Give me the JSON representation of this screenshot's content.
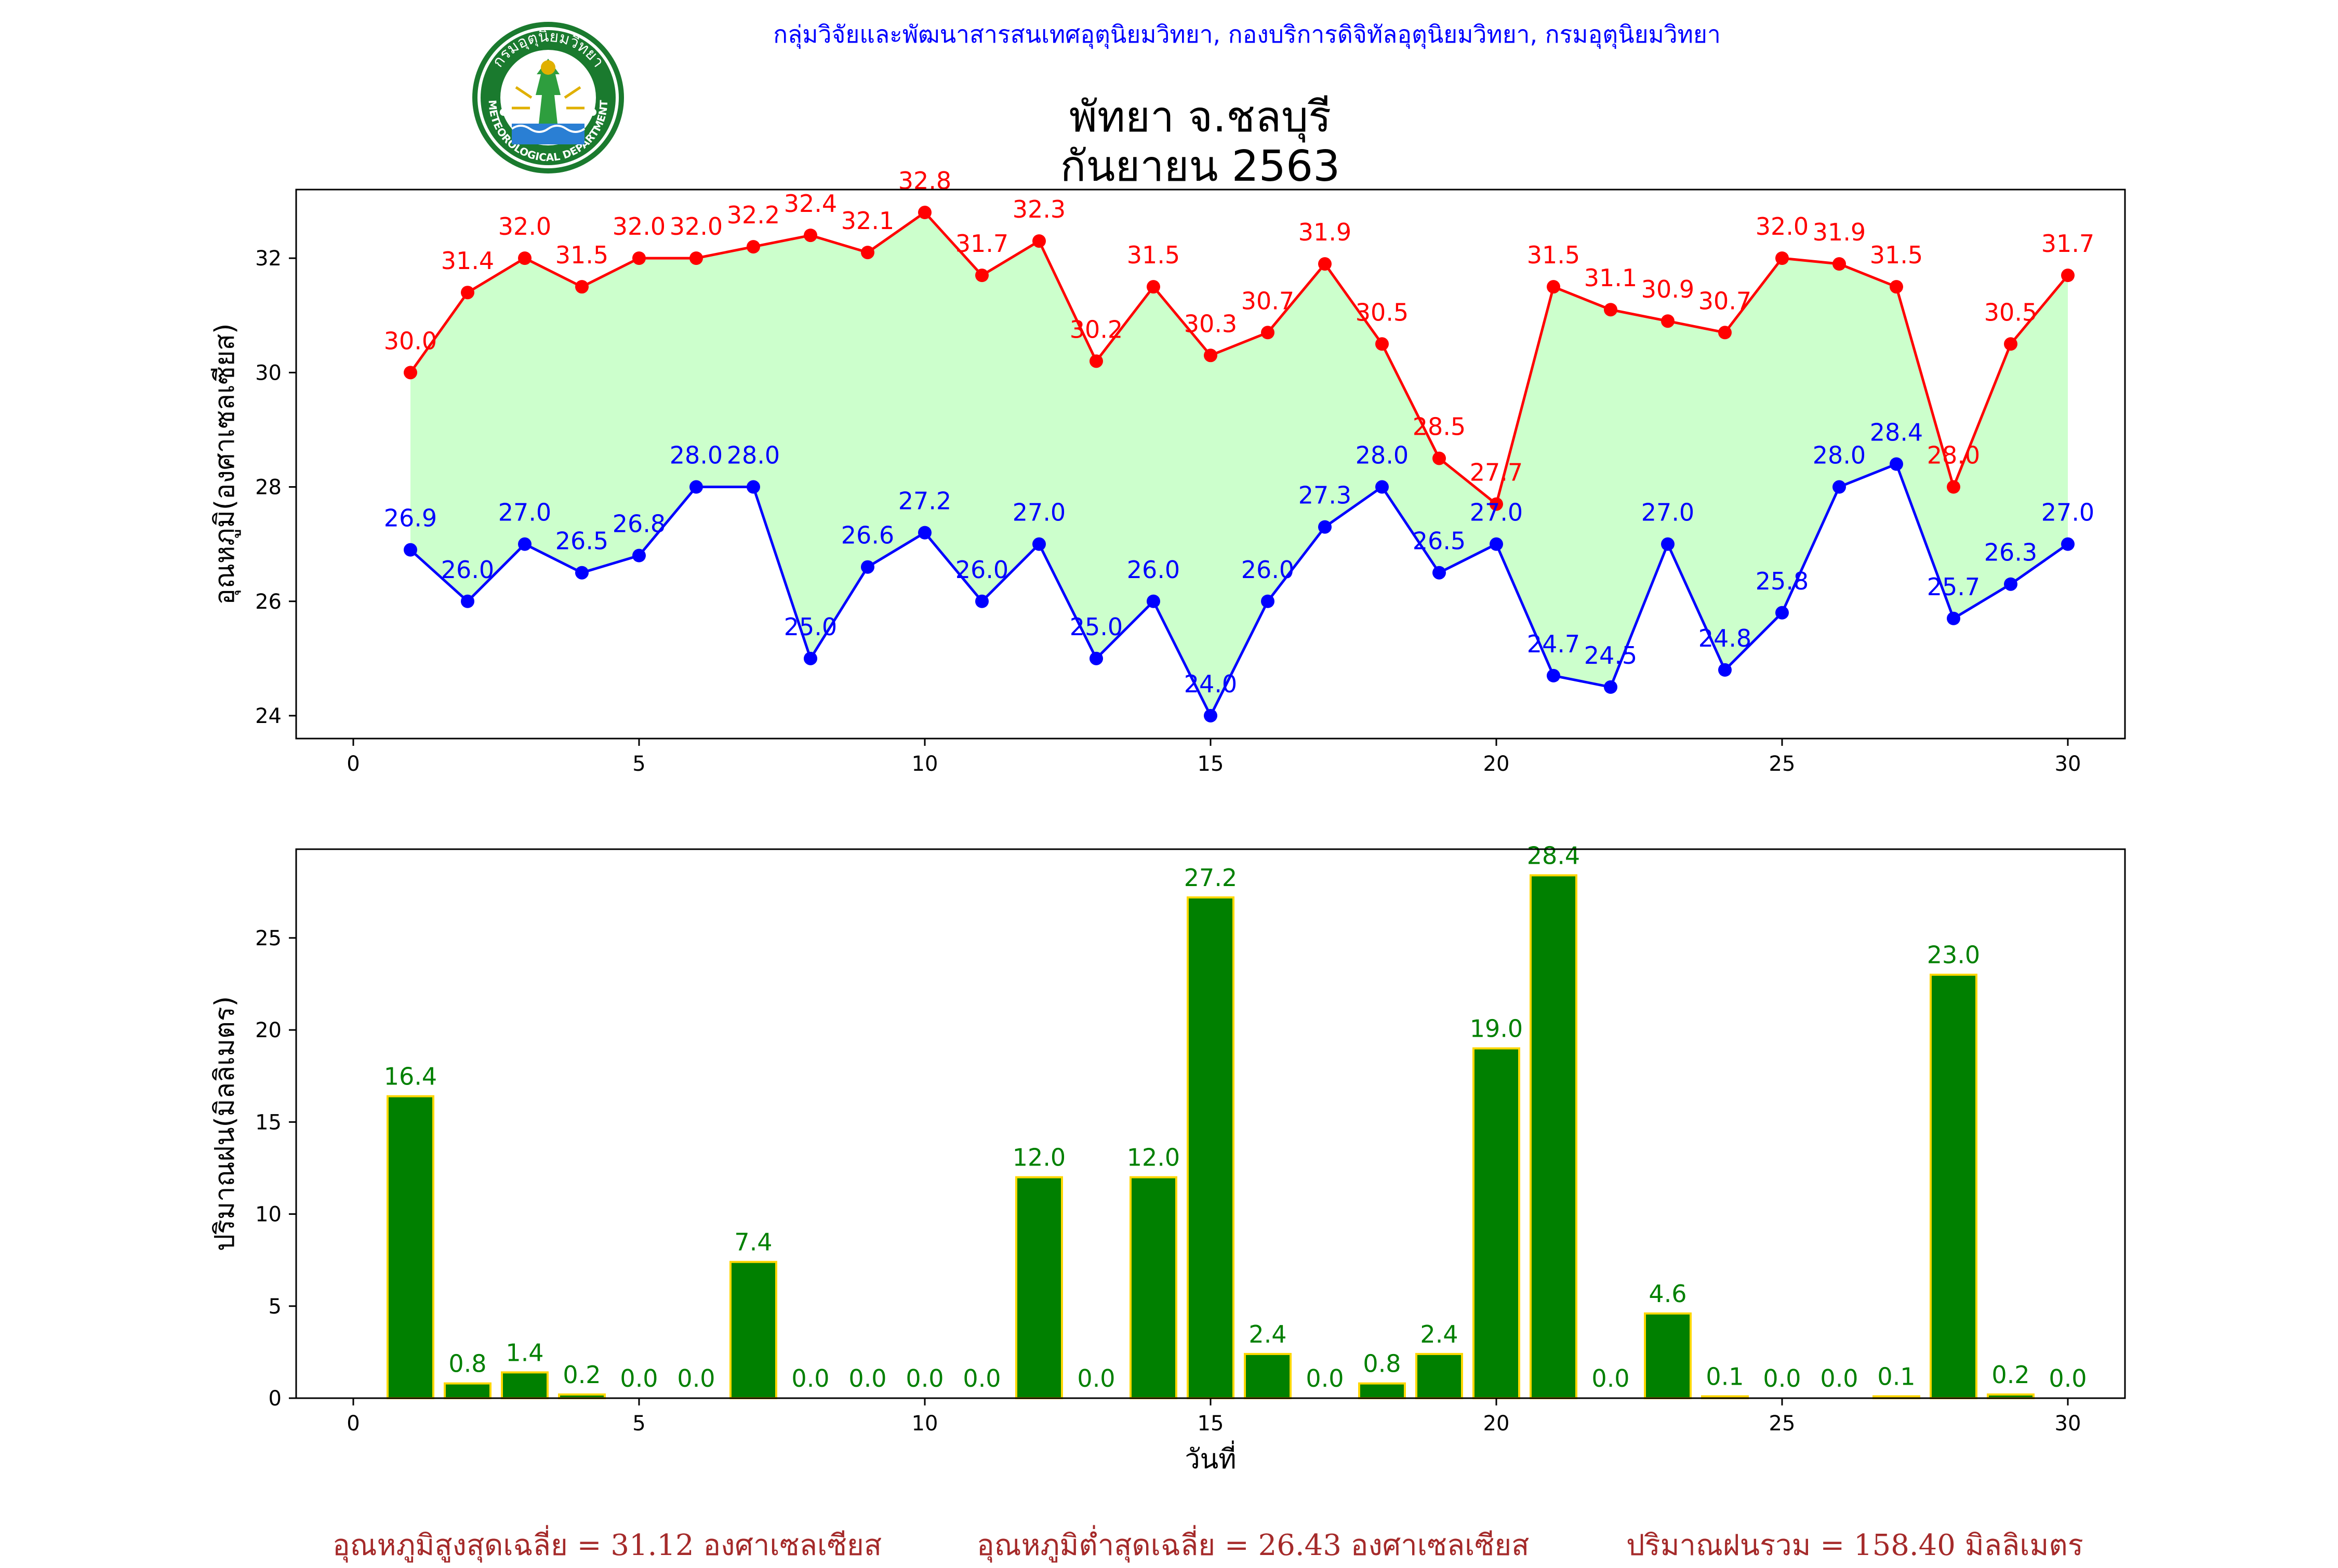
{
  "header": {
    "org_line": "กลุ่มวิจัยและพัฒนาสารสนเทศอุตุนิยมวิทยา, กองบริการดิจิทัลอุตุนิยมวิทยา, กรมอุตุนิยมวิทยา",
    "title_line1": "พัทยา จ.ชลบุรี",
    "title_line2": "กันยายน 2563",
    "logo": {
      "top_text": "กรมอุตุนิยมวิทยา",
      "bottom_text": "METEOROLOGICAL DEPARTMENT",
      "icon": "meteorological-department-seal"
    }
  },
  "colors": {
    "max_temp": "#ff0000",
    "min_temp": "#0000ff",
    "fill": "#ccffcc",
    "rain_bar": "#008000",
    "rain_edge": "#ffd700",
    "footer_text": "#a52a2a",
    "org_line": "#0000ff"
  },
  "chart_data": [
    {
      "type": "line",
      "title": "",
      "xlabel": "",
      "ylabel": "อุณหภูมิ(องศาเซลเซียส)",
      "x": [
        1,
        2,
        3,
        4,
        5,
        6,
        7,
        8,
        9,
        10,
        11,
        12,
        13,
        14,
        15,
        16,
        17,
        18,
        19,
        20,
        21,
        22,
        23,
        24,
        25,
        26,
        27,
        28,
        29,
        30
      ],
      "xlim": [
        -1,
        31
      ],
      "ylim": [
        23.6,
        33.2
      ],
      "xticks": [
        0,
        5,
        10,
        15,
        20,
        25,
        30
      ],
      "yticks": [
        24,
        26,
        28,
        30,
        32
      ],
      "fill_between": true,
      "grid": false,
      "series": [
        {
          "key": "max",
          "values": [
            30.0,
            31.4,
            32.0,
            31.5,
            32.0,
            32.0,
            32.2,
            32.4,
            32.1,
            32.8,
            31.7,
            32.3,
            30.2,
            31.5,
            30.3,
            30.7,
            31.9,
            30.5,
            28.5,
            27.7,
            31.5,
            31.1,
            30.9,
            30.7,
            32.0,
            31.9,
            31.5,
            28.0,
            30.5,
            31.7
          ]
        },
        {
          "key": "min",
          "values": [
            26.9,
            26.0,
            27.0,
            26.5,
            26.8,
            28.0,
            28.0,
            25.0,
            26.6,
            27.2,
            26.0,
            27.0,
            25.0,
            26.0,
            24.0,
            26.0,
            27.3,
            28.0,
            26.5,
            27.0,
            24.7,
            24.5,
            27.0,
            24.8,
            25.8,
            28.0,
            28.4,
            25.7,
            26.3,
            27.0
          ]
        }
      ]
    },
    {
      "type": "bar",
      "title": "",
      "xlabel": "วันที่",
      "ylabel": "ปริมาณฝน(มิลลิเมตร)",
      "x": [
        1,
        2,
        3,
        4,
        5,
        6,
        7,
        8,
        9,
        10,
        11,
        12,
        13,
        14,
        15,
        16,
        17,
        18,
        19,
        20,
        21,
        22,
        23,
        24,
        25,
        26,
        27,
        28,
        29,
        30
      ],
      "values": [
        16.4,
        0.8,
        1.4,
        0.2,
        0.0,
        0.0,
        7.4,
        0.0,
        0.0,
        0.0,
        0.0,
        12.0,
        0.0,
        12.0,
        27.2,
        2.4,
        0.0,
        0.8,
        2.4,
        19.0,
        28.4,
        0.0,
        4.6,
        0.1,
        0.0,
        0.0,
        0.1,
        23.0,
        0.2,
        0.0
      ],
      "xlim": [
        -1,
        31
      ],
      "ylim": [
        0,
        29.82
      ],
      "xticks": [
        0,
        5,
        10,
        15,
        20,
        25,
        30
      ],
      "yticks": [
        0,
        5,
        10,
        15,
        20,
        25
      ],
      "grid": false
    }
  ],
  "footer": {
    "avg_max": "อุณหภูมิสูงสุดเฉลี่ย = 31.12 องศาเซลเซียส",
    "avg_min": "อุณหภูมิต่ำสุดเฉลี่ย = 26.43 องศาเซลเซียส",
    "total_rain": "ปริมาณฝนรวม = 158.40 มิลลิเมตร"
  }
}
